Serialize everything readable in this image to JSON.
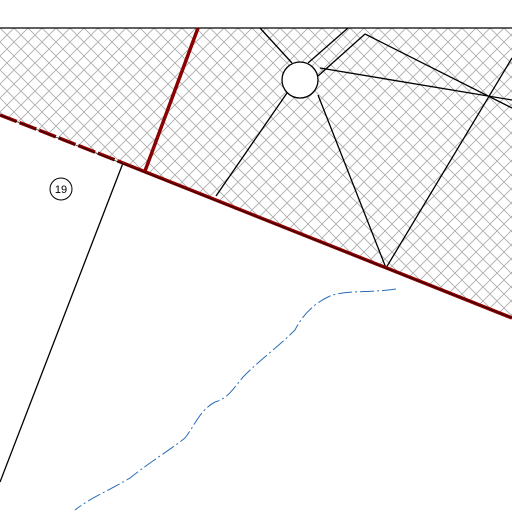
{
  "lot_label": "19"
}
